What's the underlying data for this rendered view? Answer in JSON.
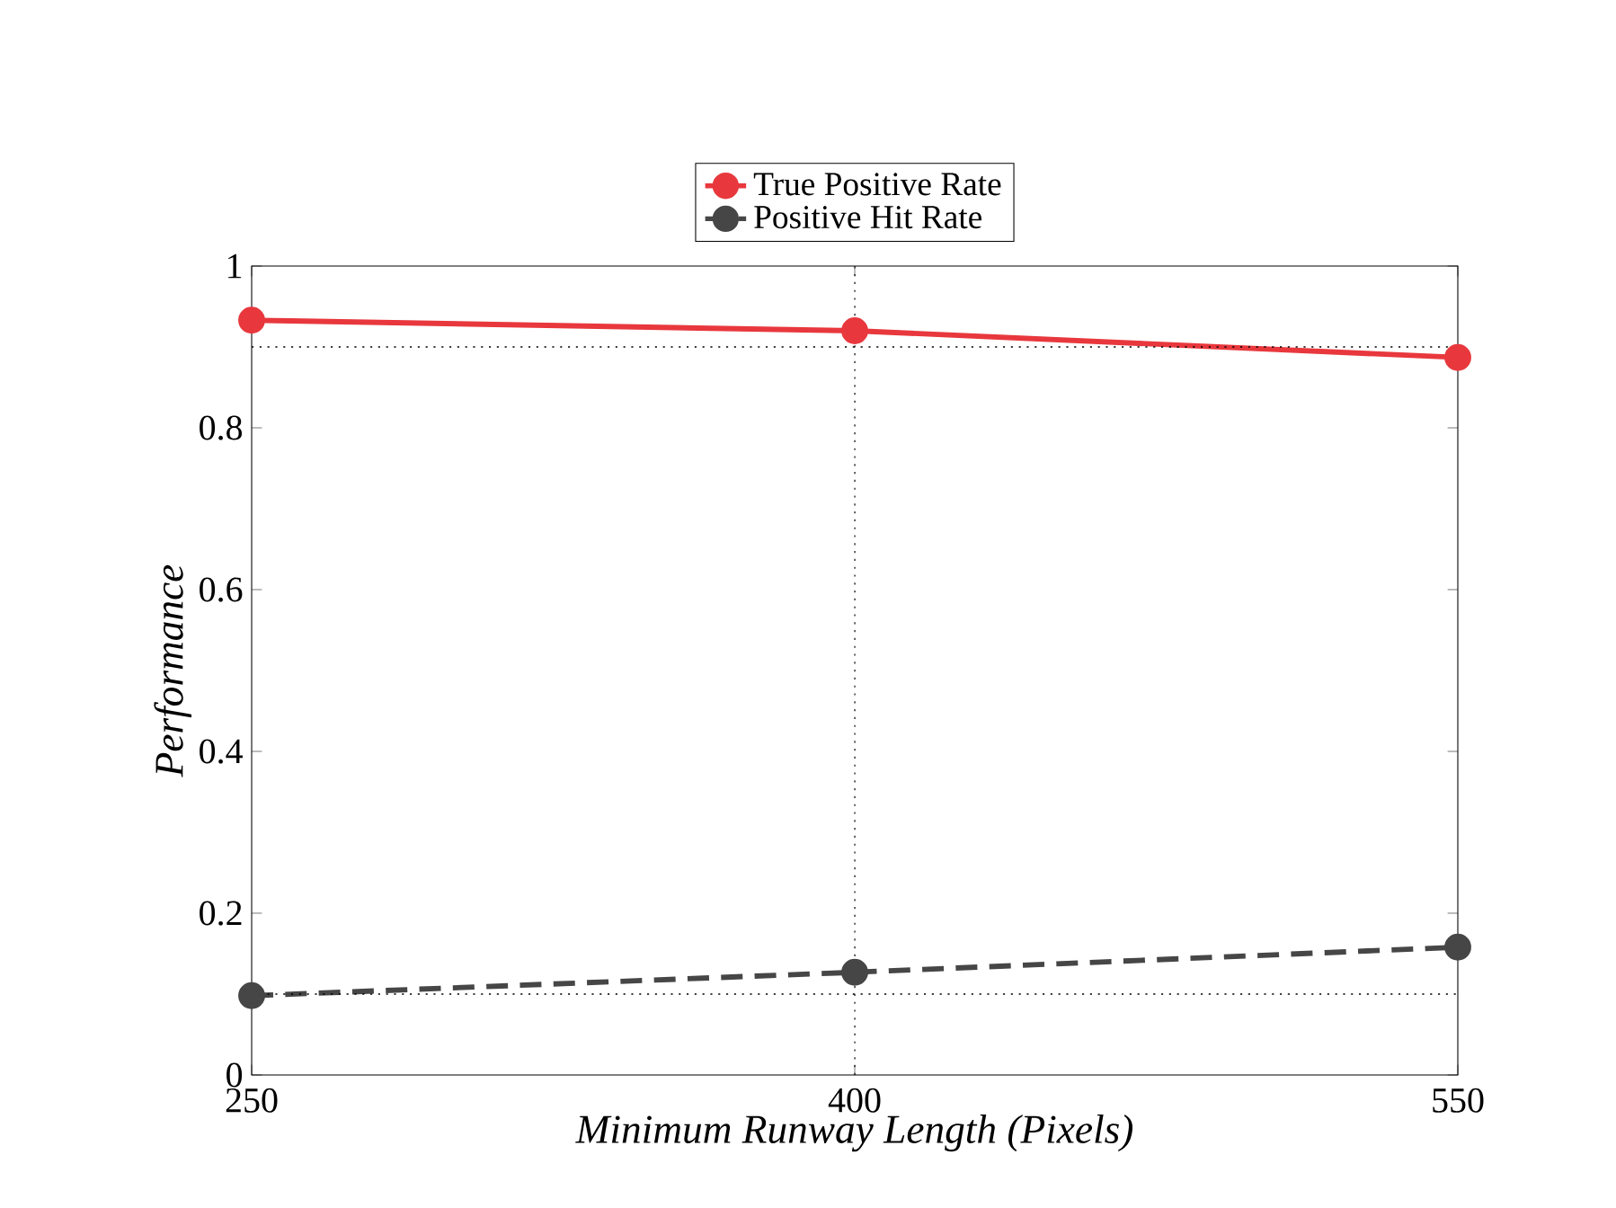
{
  "chart_data": {
    "type": "line",
    "xlabel": "Minimum Runway Length (Pixels)",
    "ylabel": "Performance",
    "x": [
      250,
      400,
      550
    ],
    "series": [
      {
        "name": "True Positive Rate",
        "color": "#e8383d",
        "values": [
          0.933,
          0.92,
          0.887
        ],
        "line_style": "solid"
      },
      {
        "name": "Positive Hit Rate",
        "color": "#464646",
        "values": [
          0.098,
          0.127,
          0.158
        ],
        "line_style": "dashed"
      }
    ],
    "xlim": [
      250,
      550
    ],
    "xticks": [
      250,
      400,
      550
    ],
    "ylim": [
      0,
      1
    ],
    "yticks": [
      0,
      0.2,
      0.4,
      0.6,
      0.8,
      1
    ],
    "ref_lines": [
      {
        "axis": "y",
        "value": 0.9,
        "line_style": "dotted"
      },
      {
        "axis": "y",
        "value": 0.1,
        "line_style": "dotted"
      },
      {
        "axis": "x",
        "value": 400,
        "line_style": "dotted"
      }
    ],
    "marker": "circle",
    "legend": "top",
    "grid": false
  }
}
